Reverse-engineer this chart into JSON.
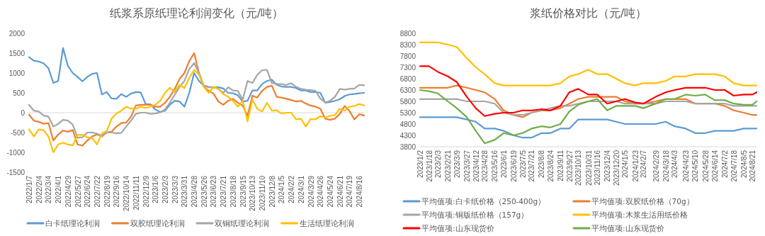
{
  "chart_data": [
    {
      "type": "line",
      "title": "纸浆系原纸理论利润变化（元/吨）",
      "legend": "bottom",
      "grid": false,
      "ref_lines": [
        {
          "axis": "y",
          "value": 0,
          "color": "#d9d9d9"
        }
      ],
      "x": [
        "2022-01-07",
        "2022-01-21",
        "2022-02-04",
        "2022-02-18",
        "2022-03-04",
        "2022-03-18",
        "2022-04-01",
        "2022-04-15",
        "2022-04-29",
        "2022-05-13",
        "2022-05-27",
        "2022-06-10",
        "2022-06-24",
        "2022-07-08",
        "2022-07-22",
        "2022-08-05",
        "2022-08-19",
        "2022-09-02",
        "2022-09-16",
        "2022-09-30",
        "2022-10-14",
        "2022-10-28",
        "2022-11-11",
        "2022-11-25",
        "2022-12-09",
        "2022-12-23",
        "2023-01-06",
        "2023-01-20",
        "2023-02-03",
        "2023-02-17",
        "2023-03-03",
        "2023-03-17",
        "2023-03-31",
        "2023-04-14",
        "2023-04-28",
        "2023-05-12",
        "2023-05-26",
        "2023-06-09",
        "2023-06-23",
        "2023-07-07",
        "2023-07-21",
        "2023-08-04",
        "2023-08-18",
        "2023-09-01",
        "2023-09-15",
        "2023-09-29",
        "2023-10-13",
        "2023-10-27",
        "2023-11-10",
        "2023-11-24",
        "2023-12-08",
        "2023-12-22",
        "2024-01-05",
        "2024-01-19",
        "2024-02-02",
        "2024-02-16",
        "2024-03-01",
        "2024-03-15",
        "2024-03-29",
        "2024-04-12",
        "2024-04-26",
        "2024-05-10",
        "2024-05-24",
        "2024-06-07",
        "2024-06-21",
        "2024-07-05",
        "2024-07-19",
        "2024-08-02",
        "2024-08-16",
        "2024-08-30"
      ],
      "xlim": [
        "2022-01-07",
        "2024-08-30"
      ],
      "xticks": [
        {
          "value": "2022-01-07",
          "label": "2022/1/7"
        },
        {
          "value": "2022-02-04",
          "label": "2022/2/4"
        },
        {
          "value": "2022-03-04",
          "label": "2022/3/4"
        },
        {
          "value": "2022-04-01",
          "label": "2022/4/1"
        },
        {
          "value": "2022-04-29",
          "label": "2022/4/29"
        },
        {
          "value": "2022-05-27",
          "label": "2022/5/27"
        },
        {
          "value": "2022-06-24",
          "label": "2022/6/24"
        },
        {
          "value": "2022-07-22",
          "label": "2022/7/22"
        },
        {
          "value": "2022-08-19",
          "label": "2022/8/19"
        },
        {
          "value": "2022-09-16",
          "label": "2022/9/16"
        },
        {
          "value": "2022-10-14",
          "label": "2022/10/14"
        },
        {
          "value": "2022-11-11",
          "label": "2022/11/11"
        },
        {
          "value": "2022-12-09",
          "label": "2022/12/9"
        },
        {
          "value": "2023-01-06",
          "label": "2023/1/6"
        },
        {
          "value": "2023-02-03",
          "label": "2023/2/3"
        },
        {
          "value": "2023-03-03",
          "label": "2023/3/3"
        },
        {
          "value": "2023-03-31",
          "label": "2023/3/31"
        },
        {
          "value": "2023-04-28",
          "label": "2023/4/28"
        },
        {
          "value": "2023-05-26",
          "label": "2023/5/26"
        },
        {
          "value": "2023-06-23",
          "label": "2023/6/23"
        },
        {
          "value": "2023-07-21",
          "label": "2023/7/21"
        },
        {
          "value": "2023-08-18",
          "label": "2023/8/18"
        },
        {
          "value": "2023-09-15",
          "label": "2023/9/15"
        },
        {
          "value": "2023-10-13",
          "label": "2023/10/13"
        },
        {
          "value": "2023-11-10",
          "label": "2023/11/10"
        },
        {
          "value": "2023-12-08",
          "label": "2023/12/8"
        },
        {
          "value": "2024-01-05",
          "label": "2024/1/5"
        },
        {
          "value": "2024-02-02",
          "label": "2024/2/2"
        },
        {
          "value": "2024-03-01",
          "label": "2024/3/1"
        },
        {
          "value": "2024-03-29",
          "label": "2024/3/29"
        },
        {
          "value": "2024-04-26",
          "label": "2024/4/26"
        },
        {
          "value": "2024-05-24",
          "label": "2024/5/24"
        },
        {
          "value": "2024-06-21",
          "label": "2024/6/21"
        },
        {
          "value": "2024-07-19",
          "label": "2024/7/19"
        },
        {
          "value": "2024-08-16",
          "label": "2024/8/16"
        }
      ],
      "ylim": [
        -1500,
        2000
      ],
      "yticks": [
        -1500,
        -1000,
        -500,
        0,
        500,
        1000,
        1500,
        2000
      ],
      "series": [
        {
          "name": "白卡纸理论利润",
          "color": "#5b9bd5",
          "values": [
            1400,
            1310,
            1290,
            1240,
            1120,
            750,
            800,
            1630,
            1180,
            1000,
            900,
            790,
            900,
            980,
            1000,
            460,
            520,
            360,
            350,
            470,
            400,
            480,
            520,
            510,
            220,
            210,
            80,
            20,
            50,
            200,
            300,
            280,
            150,
            500,
            1000,
            800,
            680,
            650,
            640,
            640,
            610,
            500,
            490,
            440,
            280,
            300,
            560,
            560,
            720,
            800,
            830,
            700,
            660,
            650,
            650,
            620,
            560,
            560,
            520,
            520,
            500,
            250,
            270,
            300,
            340,
            420,
            460,
            470,
            490,
            500
          ]
        },
        {
          "name": "双胶纸理论利润",
          "color": "#ed7d31",
          "values": [
            -50,
            -200,
            -230,
            -280,
            -260,
            -700,
            -550,
            -450,
            -480,
            -440,
            -800,
            -830,
            -700,
            -600,
            -550,
            -600,
            -500,
            -480,
            -350,
            -260,
            -250,
            -100,
            180,
            200,
            200,
            200,
            150,
            150,
            250,
            400,
            600,
            850,
            1000,
            1300,
            1500,
            1000,
            650,
            550,
            480,
            280,
            200,
            300,
            350,
            250,
            180,
            -80,
            430,
            380,
            550,
            650,
            680,
            400,
            380,
            350,
            320,
            280,
            300,
            230,
            180,
            150,
            100,
            -150,
            -180,
            -150,
            -30,
            170,
            40,
            -170,
            -40,
            -70
          ]
        },
        {
          "name": "双铜纸理论利润",
          "color": "#a5a5a5",
          "values": [
            200,
            50,
            30,
            -70,
            -100,
            -350,
            -280,
            -180,
            -200,
            -300,
            -630,
            -620,
            -500,
            -500,
            -530,
            -580,
            -500,
            -500,
            -520,
            -510,
            -350,
            -200,
            -30,
            0,
            0,
            -30,
            -20,
            10,
            80,
            250,
            450,
            650,
            800,
            1100,
            1250,
            1000,
            680,
            640,
            640,
            600,
            500,
            640,
            560,
            550,
            330,
            800,
            750,
            950,
            1070,
            1080,
            750,
            720,
            720,
            700,
            740,
            650,
            600,
            580,
            570,
            550,
            350,
            260,
            300,
            400,
            600,
            580,
            600,
            610,
            700,
            690
          ]
        },
        {
          "name": "生活纸理论利润",
          "color": "#ffc000",
          "values": [
            -420,
            -600,
            -420,
            -440,
            -600,
            -1000,
            -800,
            -760,
            -800,
            -820,
            -560,
            -560,
            -620,
            -640,
            -800,
            -520,
            -470,
            -150,
            -20,
            50,
            150,
            100,
            100,
            150,
            120,
            150,
            200,
            300,
            500,
            630,
            520,
            700,
            620,
            880,
            1080,
            960,
            650,
            500,
            650,
            600,
            470,
            400,
            300,
            150,
            300,
            -220,
            330,
            100,
            30,
            250,
            50,
            60,
            -20,
            0,
            0,
            -170,
            -150,
            -350,
            -160,
            -170,
            -90,
            -120,
            -80,
            -60,
            100,
            50,
            150,
            170,
            220,
            180
          ]
        }
      ]
    },
    {
      "type": "line",
      "title": "浆纸价格对比（元/吨）",
      "legend": "bottom",
      "grid": false,
      "x": [
        "2023-01-02",
        "2023-01-18",
        "2023-02-03",
        "2023-02-21",
        "2023-03-09",
        "2023-03-27",
        "2023-04-12",
        "2023-04-28",
        "2023-05-16",
        "2023-06-01",
        "2023-06-19",
        "2023-07-05",
        "2023-07-21",
        "2023-08-08",
        "2023-08-24",
        "2023-09-11",
        "2023-09-27",
        "2023-10-13",
        "2023-10-31",
        "2023-11-16",
        "2023-12-04",
        "2023-12-20",
        "2024-01-05",
        "2024-01-23",
        "2024-02-07",
        "2024-02-29",
        "2024-03-18",
        "2024-04-03",
        "2024-04-23",
        "2024-05-10",
        "2024-05-28",
        "2024-06-14",
        "2024-07-02",
        "2024-07-18",
        "2024-08-05",
        "2024-08-21",
        "2024-08-28"
      ],
      "xlim": [
        "2023-01-02",
        "2024-08-28"
      ],
      "xticks": [
        {
          "value": "2023-01-02",
          "label": "2023/1/2"
        },
        {
          "value": "2023-01-18",
          "label": "2023/1/18"
        },
        {
          "value": "2023-02-03",
          "label": "2023/2/3"
        },
        {
          "value": "2023-02-21",
          "label": "2023/2/21"
        },
        {
          "value": "2023-03-09",
          "label": "2023/3/9"
        },
        {
          "value": "2023-03-27",
          "label": "2023/3/27"
        },
        {
          "value": "2023-04-12",
          "label": "2023/4/12"
        },
        {
          "value": "2023-04-28",
          "label": "2023/4/28"
        },
        {
          "value": "2023-05-16",
          "label": "2023/5/16"
        },
        {
          "value": "2023-06-01",
          "label": "2023/6/1"
        },
        {
          "value": "2023-06-19",
          "label": "2023/6/19"
        },
        {
          "value": "2023-07-05",
          "label": "2023/7/5"
        },
        {
          "value": "2023-07-21",
          "label": "2023/7/21"
        },
        {
          "value": "2023-08-08",
          "label": "2023/8/8"
        },
        {
          "value": "2023-08-24",
          "label": "2023/8/24"
        },
        {
          "value": "2023-09-11",
          "label": "2023/9/11"
        },
        {
          "value": "2023-09-27",
          "label": "2023/9/27"
        },
        {
          "value": "2023-10-13",
          "label": "2023/10/13"
        },
        {
          "value": "2023-10-31",
          "label": "2023/10/31"
        },
        {
          "value": "2023-11-16",
          "label": "2023/11/16"
        },
        {
          "value": "2023-12-04",
          "label": "2023/12/4"
        },
        {
          "value": "2023-12-20",
          "label": "2023/12/20"
        },
        {
          "value": "2024-01-05",
          "label": "2024/1/5"
        },
        {
          "value": "2024-01-23",
          "label": "2024/1/23"
        },
        {
          "value": "2024-02-07",
          "label": "2024/2/7"
        },
        {
          "value": "2024-02-29",
          "label": "2024/2/29"
        },
        {
          "value": "2024-03-18",
          "label": "2024/3/18"
        },
        {
          "value": "2024-04-03",
          "label": "2024/4/3"
        },
        {
          "value": "2024-04-23",
          "label": "2024/4/23"
        },
        {
          "value": "2024-05-10",
          "label": "2024/5/10"
        },
        {
          "value": "2024-05-28",
          "label": "2024/5/28"
        },
        {
          "value": "2024-06-14",
          "label": "2024/6/14"
        },
        {
          "value": "2024-07-02",
          "label": "2024/7/2"
        },
        {
          "value": "2024-07-18",
          "label": "2024/7/18"
        },
        {
          "value": "2024-08-05",
          "label": "2024/8/5"
        },
        {
          "value": "2024-08-21",
          "label": "2024/8/21"
        }
      ],
      "ylim": [
        3800,
        8800
      ],
      "yticks": [
        3800,
        4300,
        4800,
        5300,
        5800,
        6300,
        6800,
        7300,
        7800,
        8300,
        8800
      ],
      "series": [
        {
          "name": "平均值项:白卡纸价格（250-400g）",
          "color": "#5b9bd5",
          "values": [
            5100,
            5100,
            5100,
            5100,
            5100,
            5000,
            4900,
            4600,
            4600,
            4500,
            4300,
            4200,
            4200,
            4400,
            4400,
            4600,
            4600,
            5000,
            5000,
            5000,
            5000,
            4900,
            4800,
            4800,
            4800,
            4800,
            4900,
            4700,
            4600,
            4400,
            4400,
            4500,
            4500,
            4500,
            4600,
            4600,
            4600
          ]
        },
        {
          "name": "平均值项:双胶纸价格（70g）",
          "color": "#ed7d31",
          "values": [
            6400,
            6400,
            6400,
            6400,
            6500,
            6400,
            6300,
            6200,
            5900,
            5400,
            5200,
            5100,
            5300,
            5400,
            5400,
            5500,
            5700,
            5900,
            6000,
            6000,
            6000,
            6000,
            5800,
            5700,
            5700,
            5800,
            5900,
            5900,
            5900,
            5700,
            5700,
            5700,
            5600,
            5400,
            5300,
            5200,
            5200
          ]
        },
        {
          "name": "平均值项:铜版纸价格（157g）",
          "color": "#a5a5a5",
          "values": [
            5900,
            5900,
            5900,
            5900,
            5900,
            5800,
            5800,
            5800,
            5700,
            5300,
            5200,
            5200,
            5300,
            5400,
            5500,
            5600,
            5600,
            5700,
            5800,
            5800,
            5800,
            5800,
            5700,
            5700,
            5700,
            5700,
            5800,
            5800,
            5800,
            5700,
            5700,
            5700,
            5700,
            5600,
            5600,
            5600,
            5600
          ]
        },
        {
          "name": "平均值项:木浆生活用纸价格",
          "color": "#ffc000",
          "values": [
            8400,
            8400,
            8400,
            8300,
            8200,
            7700,
            7300,
            7000,
            6600,
            6500,
            6500,
            6500,
            6500,
            6500,
            6500,
            6600,
            6900,
            7000,
            7200,
            7000,
            7000,
            6800,
            6600,
            6500,
            6600,
            6600,
            6700,
            6900,
            6900,
            7000,
            7000,
            7000,
            6900,
            6600,
            6500,
            6500,
            6500
          ]
        },
        {
          "name": "平均值项:山东现货价",
          "color": "#ff0000",
          "values": [
            7350,
            7350,
            7100,
            6900,
            6650,
            6000,
            5500,
            5150,
            5250,
            5300,
            5300,
            5400,
            5400,
            5450,
            5400,
            5600,
            6200,
            6350,
            6100,
            6100,
            5700,
            5800,
            5900,
            5750,
            5700,
            6000,
            6200,
            6300,
            6400,
            6400,
            6400,
            6300,
            6300,
            6050,
            6100,
            6100,
            6200
          ]
        },
        {
          "name": "平均值项:山东现货价",
          "color": "#70ad47",
          "values": [
            6300,
            6250,
            6150,
            5800,
            5500,
            5100,
            4500,
            3950,
            4100,
            4400,
            4300,
            4400,
            4600,
            4700,
            4650,
            4800,
            5350,
            5650,
            5800,
            5900,
            5400,
            5600,
            5600,
            5600,
            5500,
            5700,
            5900,
            5900,
            6100,
            6050,
            6100,
            5850,
            5850,
            5700,
            5650,
            5650,
            5800
          ]
        }
      ]
    }
  ]
}
